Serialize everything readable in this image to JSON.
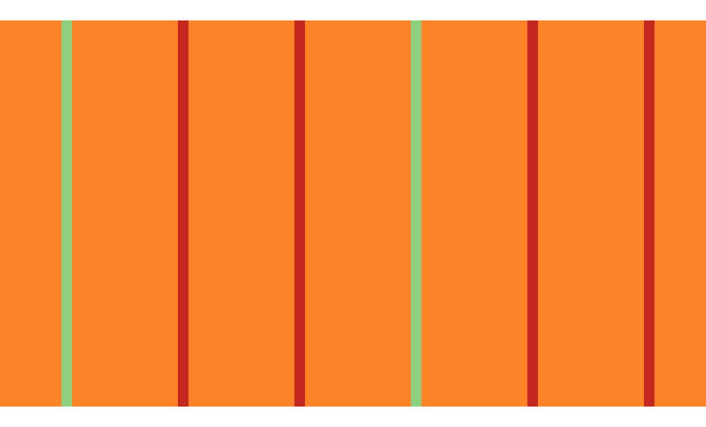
{
  "colors": {
    "background": "#FFFFFF",
    "band": "#FD8328",
    "green": "#8ED07E",
    "red": "#C4281E"
  },
  "stripes": [
    "green",
    "red",
    "red",
    "green",
    "red",
    "red"
  ]
}
